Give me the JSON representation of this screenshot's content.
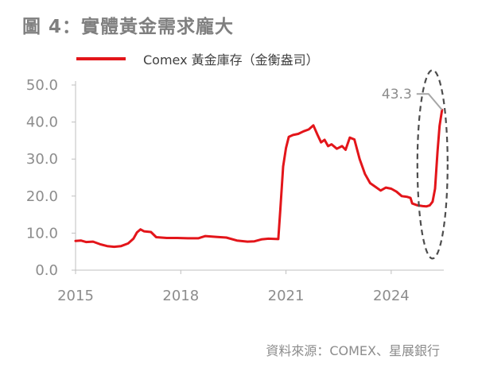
{
  "title": "圖 4：實體黃金需求龐大",
  "source": "資料來源：COMEX、星展銀行",
  "chart_data": {
    "type": "line",
    "series": [
      {
        "name": "Comex 黃金庫存（金衡盎司）",
        "color": "#e3151a",
        "points": [
          [
            2015.0,
            7.9
          ],
          [
            2015.15,
            8.0
          ],
          [
            2015.3,
            7.6
          ],
          [
            2015.5,
            7.7
          ],
          [
            2015.7,
            7.0
          ],
          [
            2015.9,
            6.5
          ],
          [
            2016.1,
            6.3
          ],
          [
            2016.3,
            6.5
          ],
          [
            2016.5,
            7.2
          ],
          [
            2016.65,
            8.5
          ],
          [
            2016.75,
            10.2
          ],
          [
            2016.85,
            11.0
          ],
          [
            2016.95,
            10.5
          ],
          [
            2017.15,
            10.3
          ],
          [
            2017.3,
            8.9
          ],
          [
            2017.6,
            8.7
          ],
          [
            2017.9,
            8.7
          ],
          [
            2018.2,
            8.6
          ],
          [
            2018.5,
            8.6
          ],
          [
            2018.7,
            9.2
          ],
          [
            2019.0,
            9.0
          ],
          [
            2019.3,
            8.8
          ],
          [
            2019.6,
            8.0
          ],
          [
            2019.9,
            7.7
          ],
          [
            2020.1,
            7.8
          ],
          [
            2020.3,
            8.3
          ],
          [
            2020.5,
            8.5
          ],
          [
            2020.78,
            8.4
          ],
          [
            2020.84,
            16.5
          ],
          [
            2020.92,
            28.0
          ],
          [
            2021.0,
            33.0
          ],
          [
            2021.08,
            36.0
          ],
          [
            2021.2,
            36.5
          ],
          [
            2021.35,
            36.8
          ],
          [
            2021.5,
            37.5
          ],
          [
            2021.65,
            38.0
          ],
          [
            2021.78,
            39.1
          ],
          [
            2021.9,
            36.5
          ],
          [
            2022.0,
            34.5
          ],
          [
            2022.1,
            35.2
          ],
          [
            2022.2,
            33.5
          ],
          [
            2022.3,
            34.0
          ],
          [
            2022.45,
            32.8
          ],
          [
            2022.6,
            33.5
          ],
          [
            2022.7,
            32.5
          ],
          [
            2022.82,
            35.8
          ],
          [
            2022.95,
            35.3
          ],
          [
            2023.1,
            30.0
          ],
          [
            2023.25,
            26.0
          ],
          [
            2023.4,
            23.5
          ],
          [
            2023.55,
            22.5
          ],
          [
            2023.7,
            21.5
          ],
          [
            2023.85,
            22.3
          ],
          [
            2024.0,
            22.0
          ],
          [
            2024.15,
            21.2
          ],
          [
            2024.3,
            20.0
          ],
          [
            2024.45,
            19.8
          ],
          [
            2024.55,
            19.5
          ],
          [
            2024.6,
            18.0
          ],
          [
            2024.75,
            17.5
          ],
          [
            2024.9,
            17.3
          ],
          [
            2025.0,
            17.2
          ],
          [
            2025.1,
            17.5
          ],
          [
            2025.18,
            18.5
          ],
          [
            2025.25,
            22.0
          ],
          [
            2025.32,
            32.0
          ],
          [
            2025.38,
            39.0
          ],
          [
            2025.45,
            43.3
          ]
        ]
      }
    ],
    "y_ticks": [
      "0.0",
      "10.0",
      "20.0",
      "30.0",
      "40.0",
      "50.0"
    ],
    "x_ticks": [
      "2015",
      "2018",
      "2021",
      "2024"
    ],
    "ylim": [
      0,
      50
    ],
    "xlim": [
      2015,
      2025.5
    ],
    "annotation": {
      "label": "43.3",
      "value": 43.3,
      "marker": "dashed-ellipse",
      "leader_color": "#a6a6a6"
    },
    "grid": false,
    "legend_position": "top-left"
  }
}
